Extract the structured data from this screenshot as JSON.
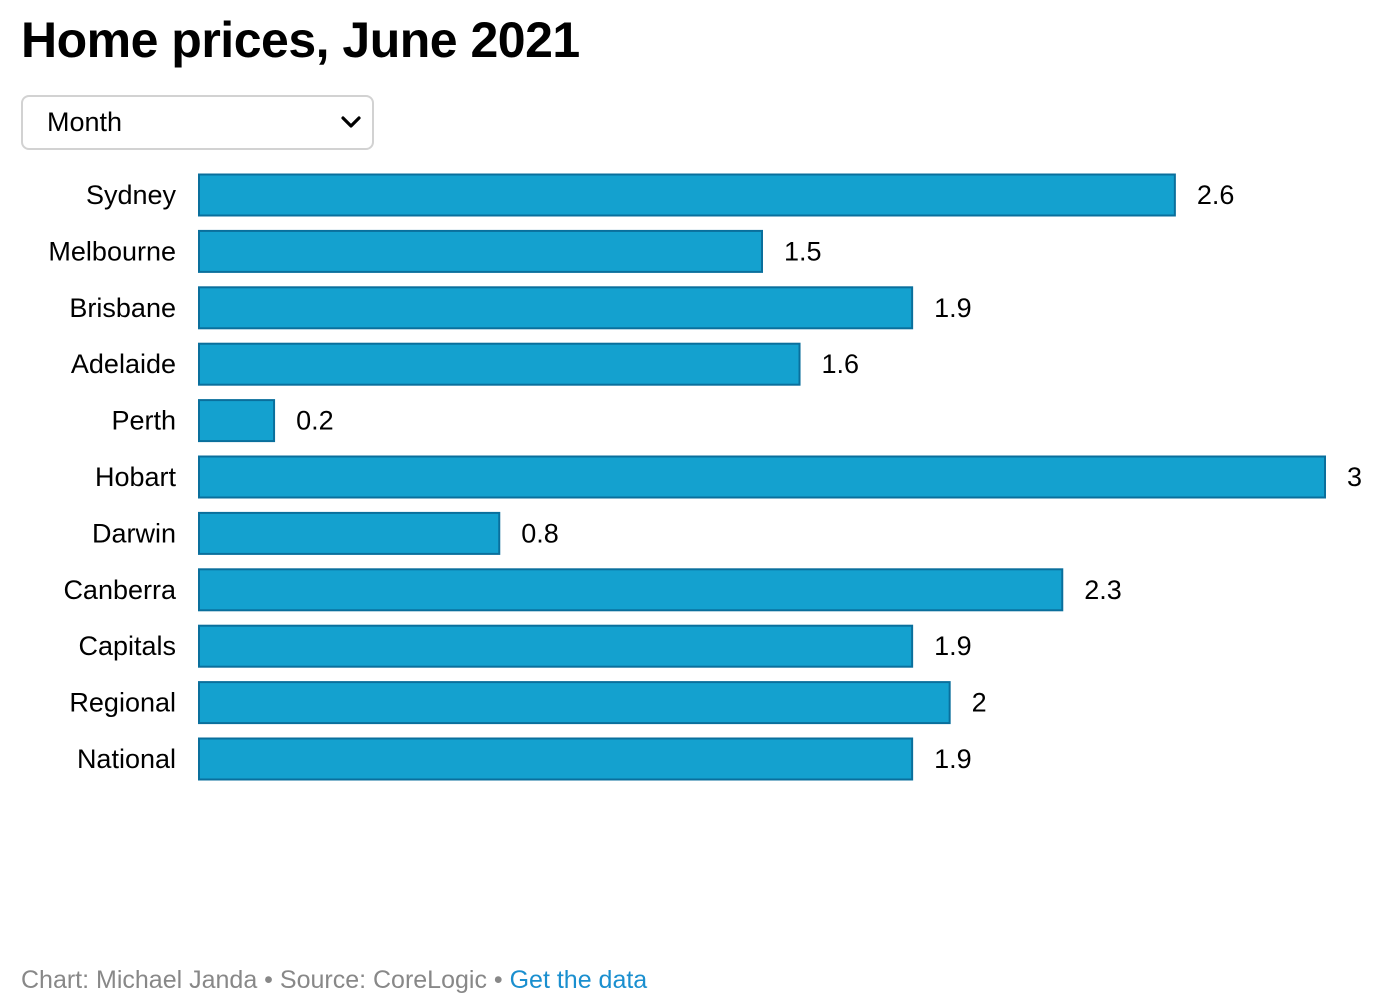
{
  "header": {
    "title": "Home prices, June 2021"
  },
  "period_select": {
    "selected": "Month",
    "icon": "chevron-down-icon"
  },
  "colors": {
    "bar_fill": "#14a1cf",
    "bar_stroke": "#0a6f9c",
    "link": "#1a8fcf",
    "footer_text": "#888888"
  },
  "chart_data": {
    "type": "bar",
    "orientation": "horizontal",
    "title": "Home prices, June 2021",
    "categories": [
      "Sydney",
      "Melbourne",
      "Brisbane",
      "Adelaide",
      "Perth",
      "Hobart",
      "Darwin",
      "Canberra",
      "Capitals",
      "Regional",
      "National"
    ],
    "values": [
      2.6,
      1.5,
      1.9,
      1.6,
      0.2,
      3,
      0.8,
      2.3,
      1.9,
      2,
      1.9
    ],
    "value_labels": [
      "2.6",
      "1.5",
      "1.9",
      "1.6",
      "0.2",
      "3",
      "0.8",
      "2.3",
      "1.9",
      "2",
      "1.9"
    ],
    "xlim": [
      0,
      3
    ],
    "grid": false,
    "legend": "none"
  },
  "footer": {
    "credit": "Chart: Michael Janda",
    "separator": " • ",
    "source": "Source: CoreLogic",
    "link": "Get the data"
  }
}
